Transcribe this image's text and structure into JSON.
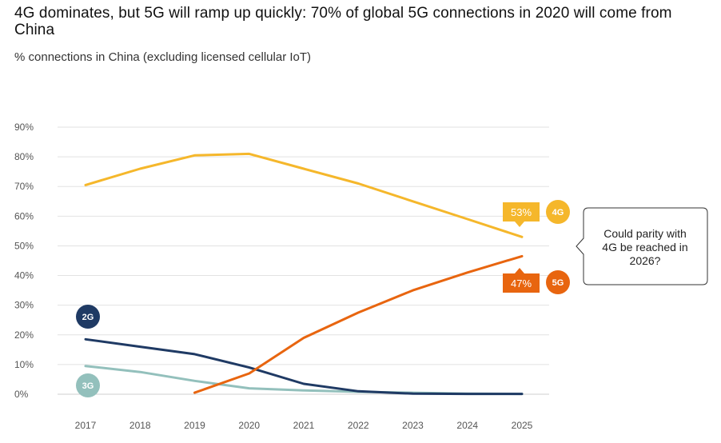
{
  "header": {
    "title": "4G dominates, but 5G will ramp up quickly: 70% of global 5G connections in 2020 will come from China",
    "subtitle": "% connections in China (excluding licensed cellular IoT)"
  },
  "chart_data": {
    "type": "line",
    "title": "4G dominates, but 5G will ramp up quickly: 70% of global 5G connections in 2020 will come from China",
    "subtitle": "% connections in China (excluding licensed cellular IoT)",
    "xlabel": "",
    "ylabel": "",
    "x": [
      "2017",
      "2018",
      "2019",
      "2020",
      "2021",
      "2022",
      "2023",
      "2024",
      "2025"
    ],
    "y_ticks": [
      "0%",
      "10%",
      "20%",
      "30%",
      "40%",
      "50%",
      "60%",
      "70%",
      "80%",
      "90%"
    ],
    "ylim": [
      0,
      90
    ],
    "grid": "horizontal",
    "series": [
      {
        "name": "4G",
        "color": "#f5b72b",
        "values": [
          70.5,
          76,
          80.5,
          81,
          76,
          71,
          65,
          59,
          53
        ]
      },
      {
        "name": "5G",
        "color": "#e8650f",
        "values": [
          null,
          null,
          0.5,
          7,
          19,
          27.5,
          35,
          41,
          46.5
        ]
      },
      {
        "name": "2G",
        "color": "#1f3a64",
        "values": [
          18.5,
          16,
          13.5,
          9,
          3.5,
          1,
          0.2,
          0.1,
          0.1
        ]
      },
      {
        "name": "3G",
        "color": "#93c0bc",
        "values": [
          9.5,
          7.5,
          4.5,
          2,
          1.3,
          0.8,
          0.5,
          0.2,
          0.1
        ]
      }
    ],
    "end_labels": [
      {
        "series": "4G",
        "value_label": "53%"
      },
      {
        "series": "5G",
        "value_label": "47%"
      }
    ],
    "annotations": [
      {
        "text_lines": [
          "Could parity with",
          "4G be reached in",
          "2026?"
        ]
      }
    ]
  }
}
